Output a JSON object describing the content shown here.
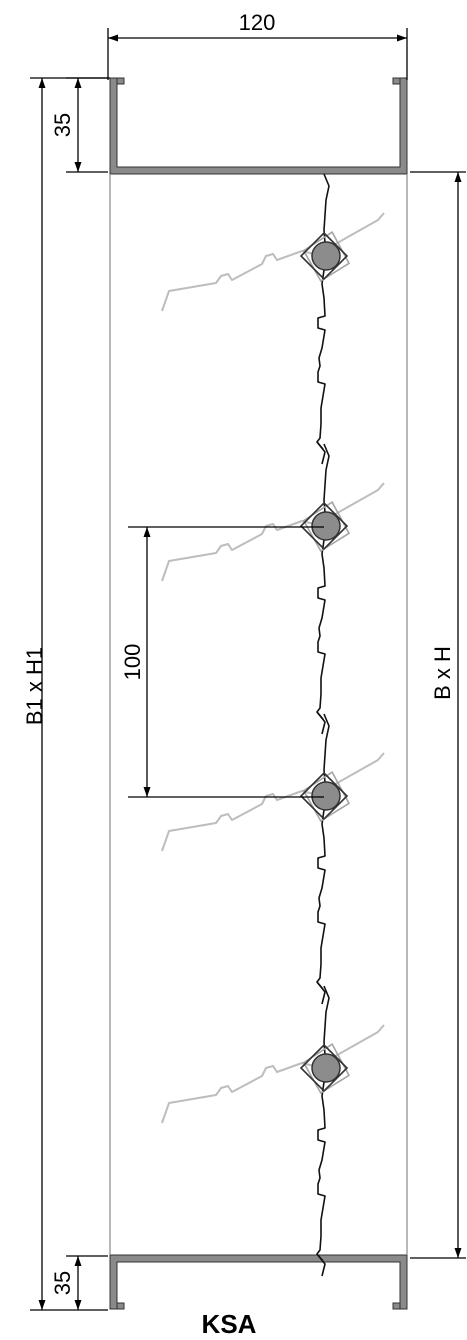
{
  "drawing": {
    "title": "KSA",
    "dimensions": {
      "width": "120",
      "flange_top": "35",
      "flange_bottom": "35",
      "blade_pitch": "100",
      "outer_size": "B1 x H1",
      "inner_size": "B x H"
    }
  }
}
